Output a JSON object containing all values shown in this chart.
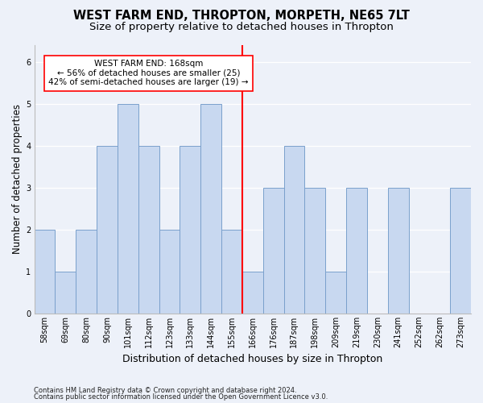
{
  "title": "WEST FARM END, THROPTON, MORPETH, NE65 7LT",
  "subtitle": "Size of property relative to detached houses in Thropton",
  "xlabel": "Distribution of detached houses by size in Thropton",
  "ylabel": "Number of detached properties",
  "categories": [
    "58sqm",
    "69sqm",
    "80sqm",
    "90sqm",
    "101sqm",
    "112sqm",
    "123sqm",
    "133sqm",
    "144sqm",
    "155sqm",
    "166sqm",
    "176sqm",
    "187sqm",
    "198sqm",
    "209sqm",
    "219sqm",
    "230sqm",
    "241sqm",
    "252sqm",
    "262sqm",
    "273sqm"
  ],
  "bar_heights": [
    2,
    1,
    2,
    4,
    5,
    4,
    2,
    4,
    5,
    2,
    1,
    3,
    4,
    3,
    1,
    3,
    0,
    3,
    0,
    0,
    3
  ],
  "bar_color": "#c8d8f0",
  "bar_edge_color": "#7aa0cc",
  "reference_line_index": 10,
  "annotation_text": "WEST FARM END: 168sqm\n← 56% of detached houses are smaller (25)\n42% of semi-detached houses are larger (19) →",
  "ylim": [
    0,
    6.4
  ],
  "yticks": [
    0,
    1,
    2,
    3,
    4,
    5,
    6
  ],
  "footer1": "Contains HM Land Registry data © Crown copyright and database right 2024.",
  "footer2": "Contains public sector information licensed under the Open Government Licence v3.0.",
  "background_color": "#edf1f9",
  "plot_background": "#edf1f9",
  "grid_color": "#ffffff",
  "title_fontsize": 10.5,
  "subtitle_fontsize": 9.5,
  "ylabel_fontsize": 8.5,
  "xlabel_fontsize": 9,
  "tick_fontsize": 7,
  "footer_fontsize": 6,
  "annot_fontsize": 7.5
}
